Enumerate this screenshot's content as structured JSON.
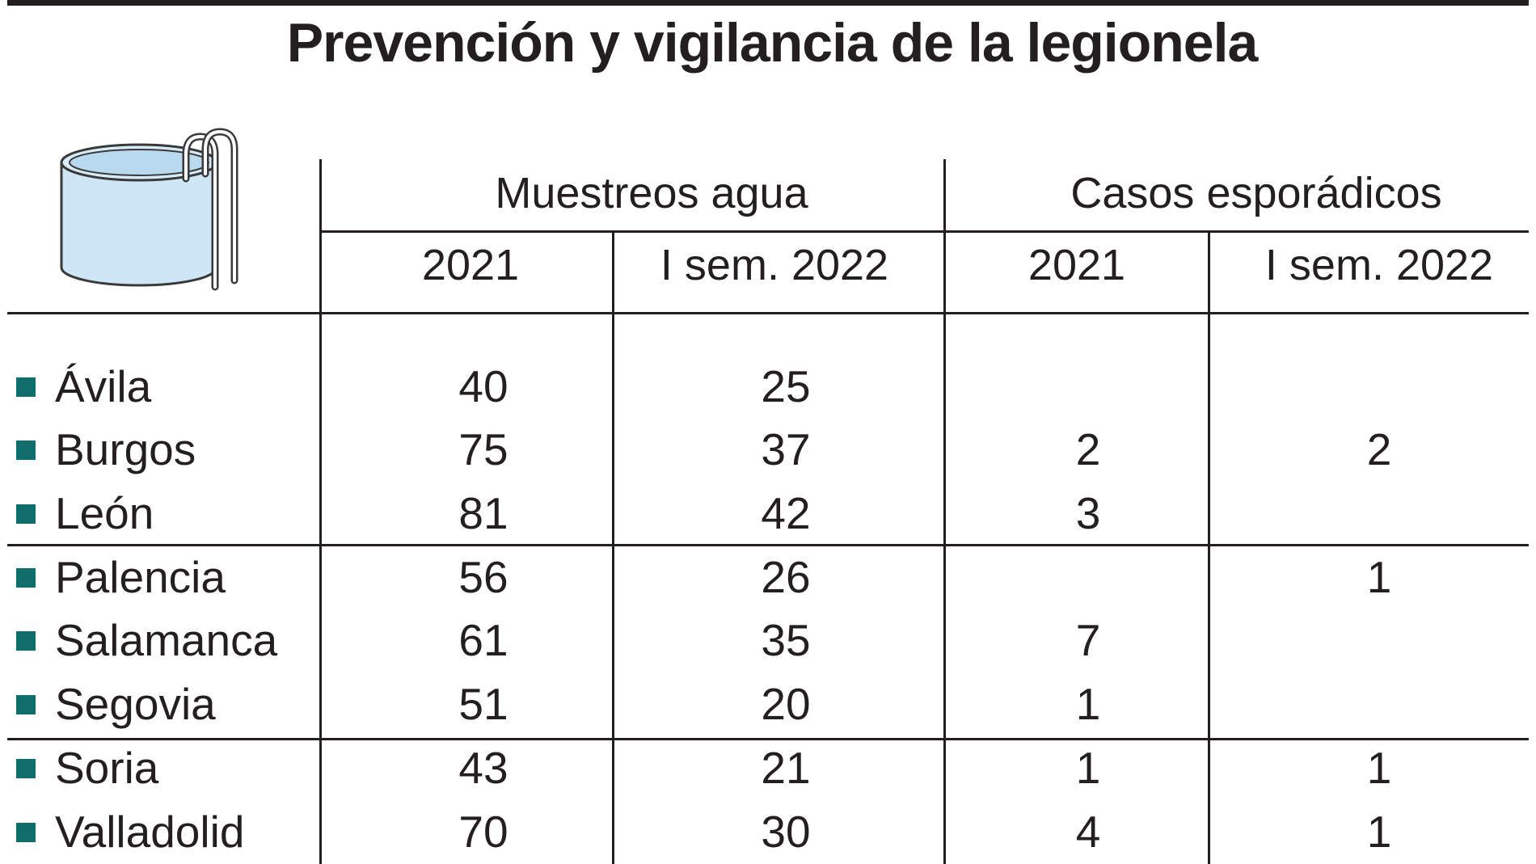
{
  "title": "Prevención y vigilancia de la legionela",
  "icon": "pool-icon",
  "colors": {
    "bullet": "#0f6e6c",
    "text": "#231f20",
    "pool_fill": "#cfe6f6",
    "pool_stroke": "#3a3a3a"
  },
  "chart_data": {
    "type": "table",
    "title": "Prevención y vigilancia de la legionela",
    "column_groups": [
      {
        "label": "Muestreos agua",
        "columns": [
          "2021",
          "I sem. 2022"
        ]
      },
      {
        "label": "Casos esporádicos",
        "columns": [
          "2021",
          "I sem. 2022"
        ]
      }
    ],
    "rows": [
      {
        "province": "Ávila",
        "muestreos_2021": "40",
        "muestreos_2022": "25",
        "casos_2021": "",
        "casos_2022": ""
      },
      {
        "province": "Burgos",
        "muestreos_2021": "75",
        "muestreos_2022": "37",
        "casos_2021": "2",
        "casos_2022": "2"
      },
      {
        "province": "León",
        "muestreos_2021": "81",
        "muestreos_2022": "42",
        "casos_2021": "3",
        "casos_2022": ""
      },
      {
        "province": "Palencia",
        "muestreos_2021": "56",
        "muestreos_2022": "26",
        "casos_2021": "",
        "casos_2022": "1"
      },
      {
        "province": "Salamanca",
        "muestreos_2021": "61",
        "muestreos_2022": "35",
        "casos_2021": "7",
        "casos_2022": ""
      },
      {
        "province": "Segovia",
        "muestreos_2021": "51",
        "muestreos_2022": "20",
        "casos_2021": "1",
        "casos_2022": ""
      },
      {
        "province": "Soria",
        "muestreos_2021": "43",
        "muestreos_2022": "21",
        "casos_2021": "1",
        "casos_2022": "1"
      },
      {
        "province": "Valladolid",
        "muestreos_2021": "70",
        "muestreos_2022": "30",
        "casos_2021": "4",
        "casos_2022": "1"
      }
    ]
  }
}
